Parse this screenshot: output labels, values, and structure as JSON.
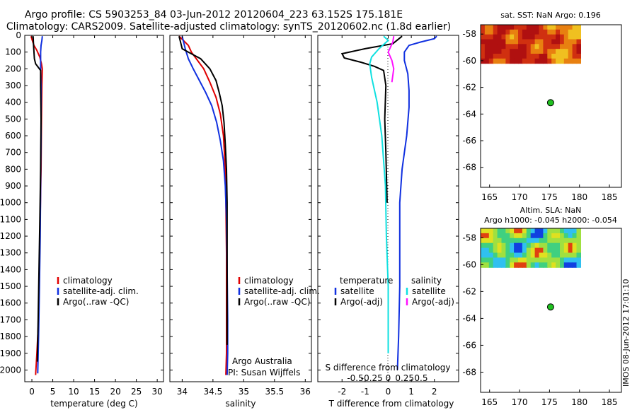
{
  "title_line1": "Argo profile: CS 5903253_84 03-Jun-2012 20120604_223 63.152S 175.181E",
  "title_line2": "Climatology: CARS2009. Satellite-adjusted climatology: synTS_20120602.nc (1.8d earlier)",
  "side_label": "IMOS 08-Jun-2012 17:01:10",
  "chart_data": [
    {
      "type": "line",
      "xlabel": "temperature (deg C)",
      "ylabel": "",
      "xlim": [
        -1.7,
        31.5
      ],
      "ylim": [
        2070,
        0
      ],
      "xticks": [
        0,
        5,
        10,
        15,
        20,
        25,
        30
      ],
      "xtick_labels": [
        "0",
        "5",
        "10",
        "15",
        "20",
        "25",
        "30"
      ],
      "yticks": [
        0,
        100,
        200,
        300,
        400,
        500,
        600,
        700,
        800,
        900,
        1000,
        1100,
        1200,
        1300,
        1400,
        1500,
        1600,
        1700,
        1800,
        1900,
        2000
      ],
      "ytick_labels": [
        "0",
        "100",
        "200",
        "300",
        "400",
        "500",
        "600",
        "700",
        "800",
        "900",
        "1000",
        "1100",
        "1200",
        "1300",
        "1400",
        "1500",
        "1600",
        "1700",
        "1800",
        "1900",
        "2000"
      ],
      "legend": {
        "position": "lower-center",
        "entries": [
          "climatology",
          "satellite-adj. clim.",
          "Argo(..raw -QC)"
        ]
      },
      "series": [
        {
          "name": "climatology",
          "color": "#e00000",
          "points": [
            [
              -0.2,
              5
            ],
            [
              0.1,
              30
            ],
            [
              0.5,
              60
            ],
            [
              1.2,
              90
            ],
            [
              1.9,
              130
            ],
            [
              2.3,
              170
            ],
            [
              2.5,
              200
            ],
            [
              2.4,
              300
            ],
            [
              2.3,
              500
            ],
            [
              2.2,
              800
            ],
            [
              2.0,
              1100
            ],
            [
              1.8,
              1400
            ],
            [
              1.6,
              1700
            ],
            [
              1.2,
              1900
            ],
            [
              0.9,
              2030
            ]
          ]
        },
        {
          "name": "satellite-adj. clim.",
          "color": "#1030e0",
          "points": [
            [
              2.5,
              5
            ],
            [
              2.4,
              30
            ],
            [
              2.2,
              60
            ],
            [
              2.1,
              100
            ],
            [
              2.1,
              200
            ],
            [
              2.2,
              300
            ],
            [
              2.2,
              600
            ],
            [
              2.1,
              900
            ],
            [
              2.0,
              1200
            ],
            [
              1.8,
              1500
            ],
            [
              1.6,
              1800
            ],
            [
              1.4,
              2020
            ]
          ]
        },
        {
          "name": "Argo(..raw -QC)",
          "color": "#000000",
          "points": [
            [
              0.3,
              5
            ],
            [
              0.4,
              60
            ],
            [
              0.5,
              100
            ],
            [
              0.6,
              140
            ],
            [
              0.9,
              170
            ],
            [
              1.5,
              190
            ],
            [
              2.1,
              210
            ],
            [
              2.1,
              300
            ],
            [
              2.2,
              500
            ],
            [
              2.1,
              800
            ],
            [
              1.9,
              1100
            ],
            [
              1.7,
              1400
            ],
            [
              1.5,
              1700
            ],
            [
              1.3,
              1950
            ]
          ]
        }
      ]
    },
    {
      "type": "line",
      "xlabel": "salinity",
      "ylabel": "",
      "xlim": [
        33.8,
        36.1
      ],
      "ylim": [
        2070,
        0
      ],
      "xticks": [
        34,
        34.5,
        35,
        35.5,
        36
      ],
      "xtick_labels": [
        "34",
        "34.5",
        "35",
        "35.5",
        "36"
      ],
      "annotations": [
        "Argo Australia",
        "PI: Susan Wijffels"
      ],
      "legend": {
        "position": "lower-right",
        "entries": [
          "climatology",
          "satellite-adj. clim.",
          "Argo(..raw -QC)"
        ]
      },
      "series": [
        {
          "name": "climatology",
          "color": "#e00000",
          "points": [
            [
              33.95,
              5
            ],
            [
              34.1,
              60
            ],
            [
              34.15,
              100
            ],
            [
              34.25,
              150
            ],
            [
              34.35,
              200
            ],
            [
              34.45,
              280
            ],
            [
              34.55,
              370
            ],
            [
              34.62,
              470
            ],
            [
              34.67,
              600
            ],
            [
              34.7,
              800
            ],
            [
              34.71,
              1000
            ],
            [
              34.72,
              1300
            ],
            [
              34.72,
              1600
            ],
            [
              34.72,
              1900
            ],
            [
              34.71,
              2030
            ]
          ]
        },
        {
          "name": "satellite-adj. clim.",
          "color": "#1030e0",
          "points": [
            [
              34.0,
              5
            ],
            [
              34.05,
              80
            ],
            [
              34.1,
              140
            ],
            [
              34.18,
              200
            ],
            [
              34.28,
              270
            ],
            [
              34.38,
              340
            ],
            [
              34.48,
              420
            ],
            [
              34.56,
              520
            ],
            [
              34.62,
              630
            ],
            [
              34.67,
              750
            ],
            [
              34.7,
              900
            ],
            [
              34.72,
              1100
            ],
            [
              34.73,
              1400
            ],
            [
              34.74,
              1700
            ],
            [
              34.74,
              1900
            ],
            [
              34.73,
              2030
            ]
          ]
        },
        {
          "name": "Argo(..raw -QC)",
          "color": "#000000",
          "points": [
            [
              33.95,
              5
            ],
            [
              34.0,
              80
            ],
            [
              34.1,
              100
            ],
            [
              34.3,
              140
            ],
            [
              34.45,
              200
            ],
            [
              34.55,
              270
            ],
            [
              34.6,
              340
            ],
            [
              34.65,
              420
            ],
            [
              34.68,
              520
            ],
            [
              34.7,
              650
            ],
            [
              34.72,
              800
            ],
            [
              34.73,
              1000
            ],
            [
              34.73,
              1300
            ],
            [
              34.73,
              1600
            ],
            [
              34.73,
              1850
            ]
          ]
        }
      ]
    },
    {
      "type": "line",
      "xlabel": "T difference from climatology",
      "ylabel": "",
      "top_xlabel": "S difference from climatology",
      "xlim": [
        -3.05,
        3.05
      ],
      "ylim": [
        2070,
        0
      ],
      "xticks_bottom": [
        -2,
        -1,
        0,
        1,
        2
      ],
      "xtick_labels_bottom": [
        "-2",
        "-1",
        "0",
        "1",
        "2"
      ],
      "xticks_s": [
        -0.5,
        -0.25,
        0,
        0.25,
        0.5
      ],
      "xtick_labels_s": [
        "-0.5",
        "-0.25",
        "0",
        "0.25",
        "0.5"
      ],
      "legend": {
        "position": "lower",
        "groups": [
          {
            "title": "temperature",
            "entries": [
              "satellite",
              "Argo(-adj)"
            ]
          },
          {
            "title": "salinity",
            "entries": [
              "satellite",
              "Argo(-adj)"
            ]
          }
        ]
      },
      "series": [
        {
          "name": "temperature satellite",
          "color": "#1030e0",
          "points": [
            [
              2.1,
              5
            ],
            [
              2.0,
              20
            ],
            [
              1.4,
              40
            ],
            [
              0.9,
              60
            ],
            [
              0.8,
              80
            ],
            [
              0.7,
              100
            ],
            [
              0.7,
              150
            ],
            [
              0.85,
              230
            ],
            [
              0.9,
              330
            ],
            [
              0.9,
              430
            ],
            [
              0.8,
              600
            ],
            [
              0.6,
              800
            ],
            [
              0.5,
              1000
            ],
            [
              0.5,
              1200
            ],
            [
              0.5,
              1500
            ],
            [
              0.45,
              1800
            ],
            [
              0.4,
              2000
            ]
          ]
        },
        {
          "name": "temperature Argo(-adj)",
          "color": "#000000",
          "points": [
            [
              0.6,
              5
            ],
            [
              0.2,
              50
            ],
            [
              -1.0,
              80
            ],
            [
              -2.0,
              110
            ],
            [
              -1.9,
              135
            ],
            [
              -1.2,
              160
            ],
            [
              -0.6,
              185
            ],
            [
              -0.2,
              210
            ],
            [
              -0.1,
              300
            ],
            [
              -0.15,
              500
            ],
            [
              -0.1,
              700
            ],
            [
              -0.05,
              1000
            ]
          ]
        },
        {
          "name": "salinity satellite",
          "color": "#10e0e0",
          "points": [
            [
              -0.05,
              5
            ],
            [
              0,
              30
            ],
            [
              -0.1,
              80
            ],
            [
              -0.18,
              130
            ],
            [
              -0.2,
              170
            ],
            [
              -0.18,
              250
            ],
            [
              -0.12,
              400
            ],
            [
              -0.07,
              600
            ],
            [
              -0.03,
              900
            ],
            [
              -0.02,
              1200
            ],
            [
              0,
              1500
            ],
            [
              0,
              1900
            ]
          ]
        },
        {
          "name": "salinity Argo(-adj)",
          "color": "#ff10ff",
          "points": [
            [
              0.06,
              5
            ],
            [
              0.05,
              40
            ],
            [
              0.0,
              100
            ],
            [
              0.04,
              150
            ],
            [
              0.06,
              200
            ],
            [
              0.04,
              280
            ]
          ]
        }
      ]
    },
    {
      "type": "heatmap",
      "title": "sat. SST: NaN Argo: 0.196",
      "xlim": [
        163.5,
        187
      ],
      "ylim": [
        -69.5,
        -57.3
      ],
      "xticks": [
        165,
        170,
        175,
        180,
        185
      ],
      "xtick_labels": [
        "165",
        "170",
        "175",
        "180",
        "185"
      ],
      "yticks": [
        -58,
        -60,
        -62,
        -64,
        -66,
        -68
      ],
      "ytick_labels": [
        "-58",
        "-60",
        "-62",
        "-64",
        "-66",
        "-68"
      ],
      "field_extent": {
        "lon": [
          163.5,
          180.2
        ],
        "lat": [
          -60.2,
          -57.3
        ]
      },
      "field_colors": [
        "#b01010",
        "#d03010",
        "#e88010",
        "#f0c020"
      ],
      "marker": {
        "lon": 175.18,
        "lat": -63.15,
        "color": "#20c020"
      }
    },
    {
      "type": "heatmap",
      "title": "Altim. SLA: NaN",
      "subtitle": "Argo h1000: -0.045 h2000: -0.054",
      "xlim": [
        163.5,
        187
      ],
      "ylim": [
        -69.5,
        -57.3
      ],
      "xticks": [
        165,
        170,
        175,
        180,
        185
      ],
      "xtick_labels": [
        "165",
        "170",
        "175",
        "180",
        "185"
      ],
      "yticks": [
        -58,
        -60,
        -62,
        -64,
        -66,
        -68
      ],
      "ytick_labels": [
        "-58",
        "-60",
        "-62",
        "-64",
        "-66",
        "-68"
      ],
      "field_extent": {
        "lon": [
          163.5,
          180.2
        ],
        "lat": [
          -60.2,
          -57.3
        ]
      },
      "field_colors": [
        "#1040e0",
        "#30c0f0",
        "#40d080",
        "#a0e040",
        "#e0e020",
        "#e04010"
      ],
      "marker": {
        "lon": 175.18,
        "lat": -63.15,
        "color": "#20c020"
      }
    }
  ]
}
